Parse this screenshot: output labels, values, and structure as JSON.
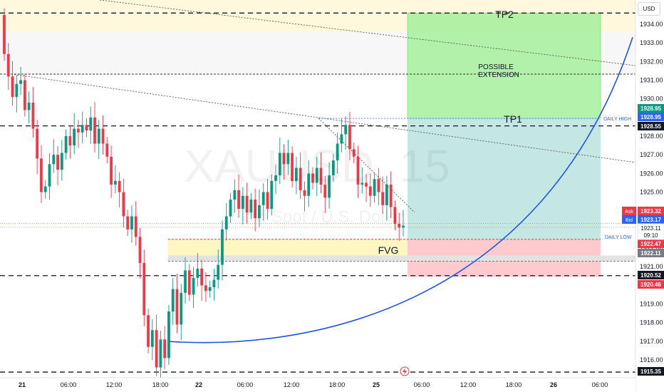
{
  "currency_button": "USD",
  "watermark": {
    "symbol": "XAUUSD",
    "interval": "15",
    "description": "Gold Spot / U.S. Dollar"
  },
  "chart_data": {
    "type": "candlestick",
    "symbol": "XAUUSD",
    "interval": "15",
    "ylim": [
      1914.8,
      1935.6
    ],
    "y_ticks": [
      "1934.00",
      "1933.00",
      "1932.00",
      "1931.00",
      "1930.00",
      "1929.00",
      "1928.00",
      "1927.00",
      "1926.00",
      "1925.00",
      "1924.00",
      "1923.00",
      "1922.00",
      "1921.00",
      "1920.00",
      "1919.00",
      "1918.00",
      "1917.00",
      "1916.00"
    ],
    "x_ticks": [
      "21",
      "06:00",
      "12:00",
      "18:00",
      "22",
      "06:00",
      "12:00",
      "18:00",
      "25",
      "06:00",
      "12:00",
      "18:00",
      "26",
      "06:00"
    ],
    "x_ticks_bold": [
      "21",
      "22",
      "25",
      "26"
    ],
    "closes": [
      1932.4,
      1931.2,
      1930.1,
      1930.8,
      1931.0,
      1929.4,
      1929.8,
      1928.4,
      1926.8,
      1925.0,
      1925.3,
      1926.5,
      1927.0,
      1926.2,
      1927.1,
      1928.0,
      1927.5,
      1928.4,
      1928.2,
      1928.6,
      1928.3,
      1929.0,
      1927.6,
      1928.4,
      1927.6,
      1926.9,
      1925.4,
      1925.6,
      1925.0,
      1923.7,
      1923.0,
      1923.7,
      1922.6,
      1921.2,
      1918.4,
      1916.7,
      1917.6,
      1915.6,
      1917.1,
      1916.1,
      1918.6,
      1919.8,
      1917.9,
      1919.6,
      1920.8,
      1919.5,
      1920.4,
      1920.9,
      1920.0,
      1919.7,
      1919.9,
      1920.3,
      1921.1,
      1923.0,
      1923.7,
      1924.6,
      1925.1,
      1924.1,
      1924.8,
      1923.9,
      1924.6,
      1923.6,
      1924.3,
      1925.0,
      1924.1,
      1925.6,
      1925.9,
      1927.1,
      1926.5,
      1927.1,
      1925.6,
      1926.3,
      1925.1,
      1924.8,
      1926.0,
      1925.5,
      1926.3,
      1925.4,
      1924.7,
      1925.9,
      1926.7,
      1927.6,
      1928.1,
      1928.6,
      1927.3,
      1926.9,
      1925.4,
      1925.5,
      1925.3,
      1924.8,
      1925.7,
      1925.0,
      1924.3,
      1925.4,
      1924.2,
      1923.3,
      1923.1,
      1923.2
    ],
    "current_price": "1923.11",
    "countdown": "09:10",
    "ask": {
      "label": "Ask",
      "value": "1923.32"
    },
    "bid": {
      "label": "Bid",
      "value": "1923.17"
    },
    "price_flags": [
      {
        "value": "1928.95",
        "color": "#089981"
      },
      {
        "value": "1928.95",
        "color": "#2962ff"
      },
      {
        "value": "1928.55",
        "color": "#131722"
      },
      {
        "value": "1922.47",
        "color": "#f23645"
      },
      {
        "value": "1922.11",
        "color": "#787b86"
      },
      {
        "value": "1920.52",
        "color": "#131722"
      },
      {
        "value": "1920.46",
        "color": "#f23645"
      },
      {
        "value": "1915.35",
        "color": "#131722"
      }
    ],
    "levels": [
      {
        "value": 1934.6,
        "style": "dashed"
      },
      {
        "value": 1928.55,
        "style": "dashed"
      },
      {
        "value": 1920.52,
        "style": "dashed"
      },
      {
        "value": 1915.35,
        "style": "dashed"
      }
    ],
    "daily_high": {
      "label": "DAILY HIGH",
      "value": 1928.95
    },
    "daily_low": {
      "label": "DAILY LOW",
      "value": 1922.47
    },
    "fvg": {
      "label": "FVG",
      "top": 1922.47,
      "bottom": 1921.3
    },
    "position": {
      "target": 1934.6,
      "entry": 1922.47,
      "stop": 1920.46
    },
    "annotations": {
      "tp2": "TP2",
      "tp1": "TP1",
      "extension_line1": "POSSIBLE",
      "extension_line2": "EXTENSION"
    },
    "curve": {
      "from_value": 1917.0,
      "low_value": 1916.8,
      "to_value": 1933.3
    },
    "colors": {
      "up": "#089981",
      "down": "#f23645",
      "curve": "#1e53e5",
      "target_zone": "#a5f09b",
      "profit_zone": "#b2dfdb",
      "stop_zone": "#ffb3b8",
      "fvg_zone": "#fff6c2"
    }
  }
}
